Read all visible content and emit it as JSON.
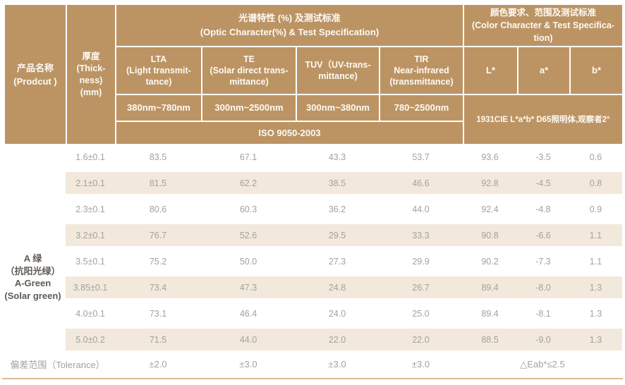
{
  "header": {
    "product_label": "产品名称\n(Prodcut )",
    "thickness_label": "厚度\n(Thick-\nness)\n(mm)",
    "optic_group": "光谱特性 (%) 及测试标准\n(Optic Character(%) & Test Specification)",
    "color_group": "颜色要求、范围及测试标准\n(Color Character & Test Specifica-\ntion)",
    "lta_title": "LTA\n(Light transmit-\ntance)",
    "te_title": "TE\n(Solar direct trans-\nmittance)",
    "tuv_title": "TUV（UV-trans-\nmittance)",
    "tir_title": "TIR\nNear-infrared\n(transmittance)",
    "l_title": "L*",
    "a_title": "a*",
    "b_title": "b*",
    "lta_range": "380nm~780nm",
    "te_range": "300nm~2500nm",
    "tuv_range": "300nm~380nm",
    "tir_range": "780~2500nm",
    "optic_standard": "ISO 9050-2003",
    "color_standard": "1931CIE L*a*b* D65照明体,观察者2°"
  },
  "product": {
    "name": "A 绿\n（抗阳光绿）\nA-Green\n(Solar green)"
  },
  "rows": [
    {
      "thickness": "1.6±0.1",
      "lta": "83.5",
      "te": "67.1",
      "tuv": "43.3",
      "tir": "53.7",
      "l": "93.6",
      "a": "-3.5",
      "b": "0.6"
    },
    {
      "thickness": "2.1±0.1",
      "lta": "81.5",
      "te": "62.2",
      "tuv": "38.5",
      "tir": "46.6",
      "l": "92.8",
      "a": "-4.5",
      "b": "0.8"
    },
    {
      "thickness": "2.3±0.1",
      "lta": "80.6",
      "te": "60.3",
      "tuv": "36.2",
      "tir": "44.0",
      "l": "92.4",
      "a": "-4.8",
      "b": "0.9"
    },
    {
      "thickness": "3.2±0.1",
      "lta": "76.7",
      "te": "52.6",
      "tuv": "29.5",
      "tir": "33.3",
      "l": "90.8",
      "a": "-6.6",
      "b": "1.1"
    },
    {
      "thickness": "3.5±0.1",
      "lta": "75.2",
      "te": "50.0",
      "tuv": "27.3",
      "tir": "29.9",
      "l": "90.2",
      "a": "-7.3",
      "b": "1.1"
    },
    {
      "thickness": "3.85±0.1",
      "lta": "73.4",
      "te": "47.3",
      "tuv": "24.8",
      "tir": "26.7",
      "l": "89.4",
      "a": "-8.0",
      "b": "1.3"
    },
    {
      "thickness": "4.0±0.1",
      "lta": "73.1",
      "te": "46.4",
      "tuv": "24.0",
      "tir": "25.0",
      "l": "89.4",
      "a": "-8.1",
      "b": "1.3"
    },
    {
      "thickness": "5.0±0.2",
      "lta": "71.5",
      "te": "44.0",
      "tuv": "22.0",
      "tir": "22.0",
      "l": "88.5",
      "a": "-9.0",
      "b": "1.3"
    }
  ],
  "tolerance": {
    "label": "偏差范围（Tolerance）",
    "lta": "±2.0",
    "te": "±3.0",
    "tuv": "±3.0",
    "tir": "±3.0",
    "eab": "△Eab*≤2.5"
  },
  "colors": {
    "header_bg": "#bc9464",
    "header_text": "#fdfaf5",
    "stripe_bg": "#f2e9dc",
    "data_text": "#a5a19b",
    "product_text": "#5f5b56",
    "bottom_line": "#ddbd92"
  }
}
